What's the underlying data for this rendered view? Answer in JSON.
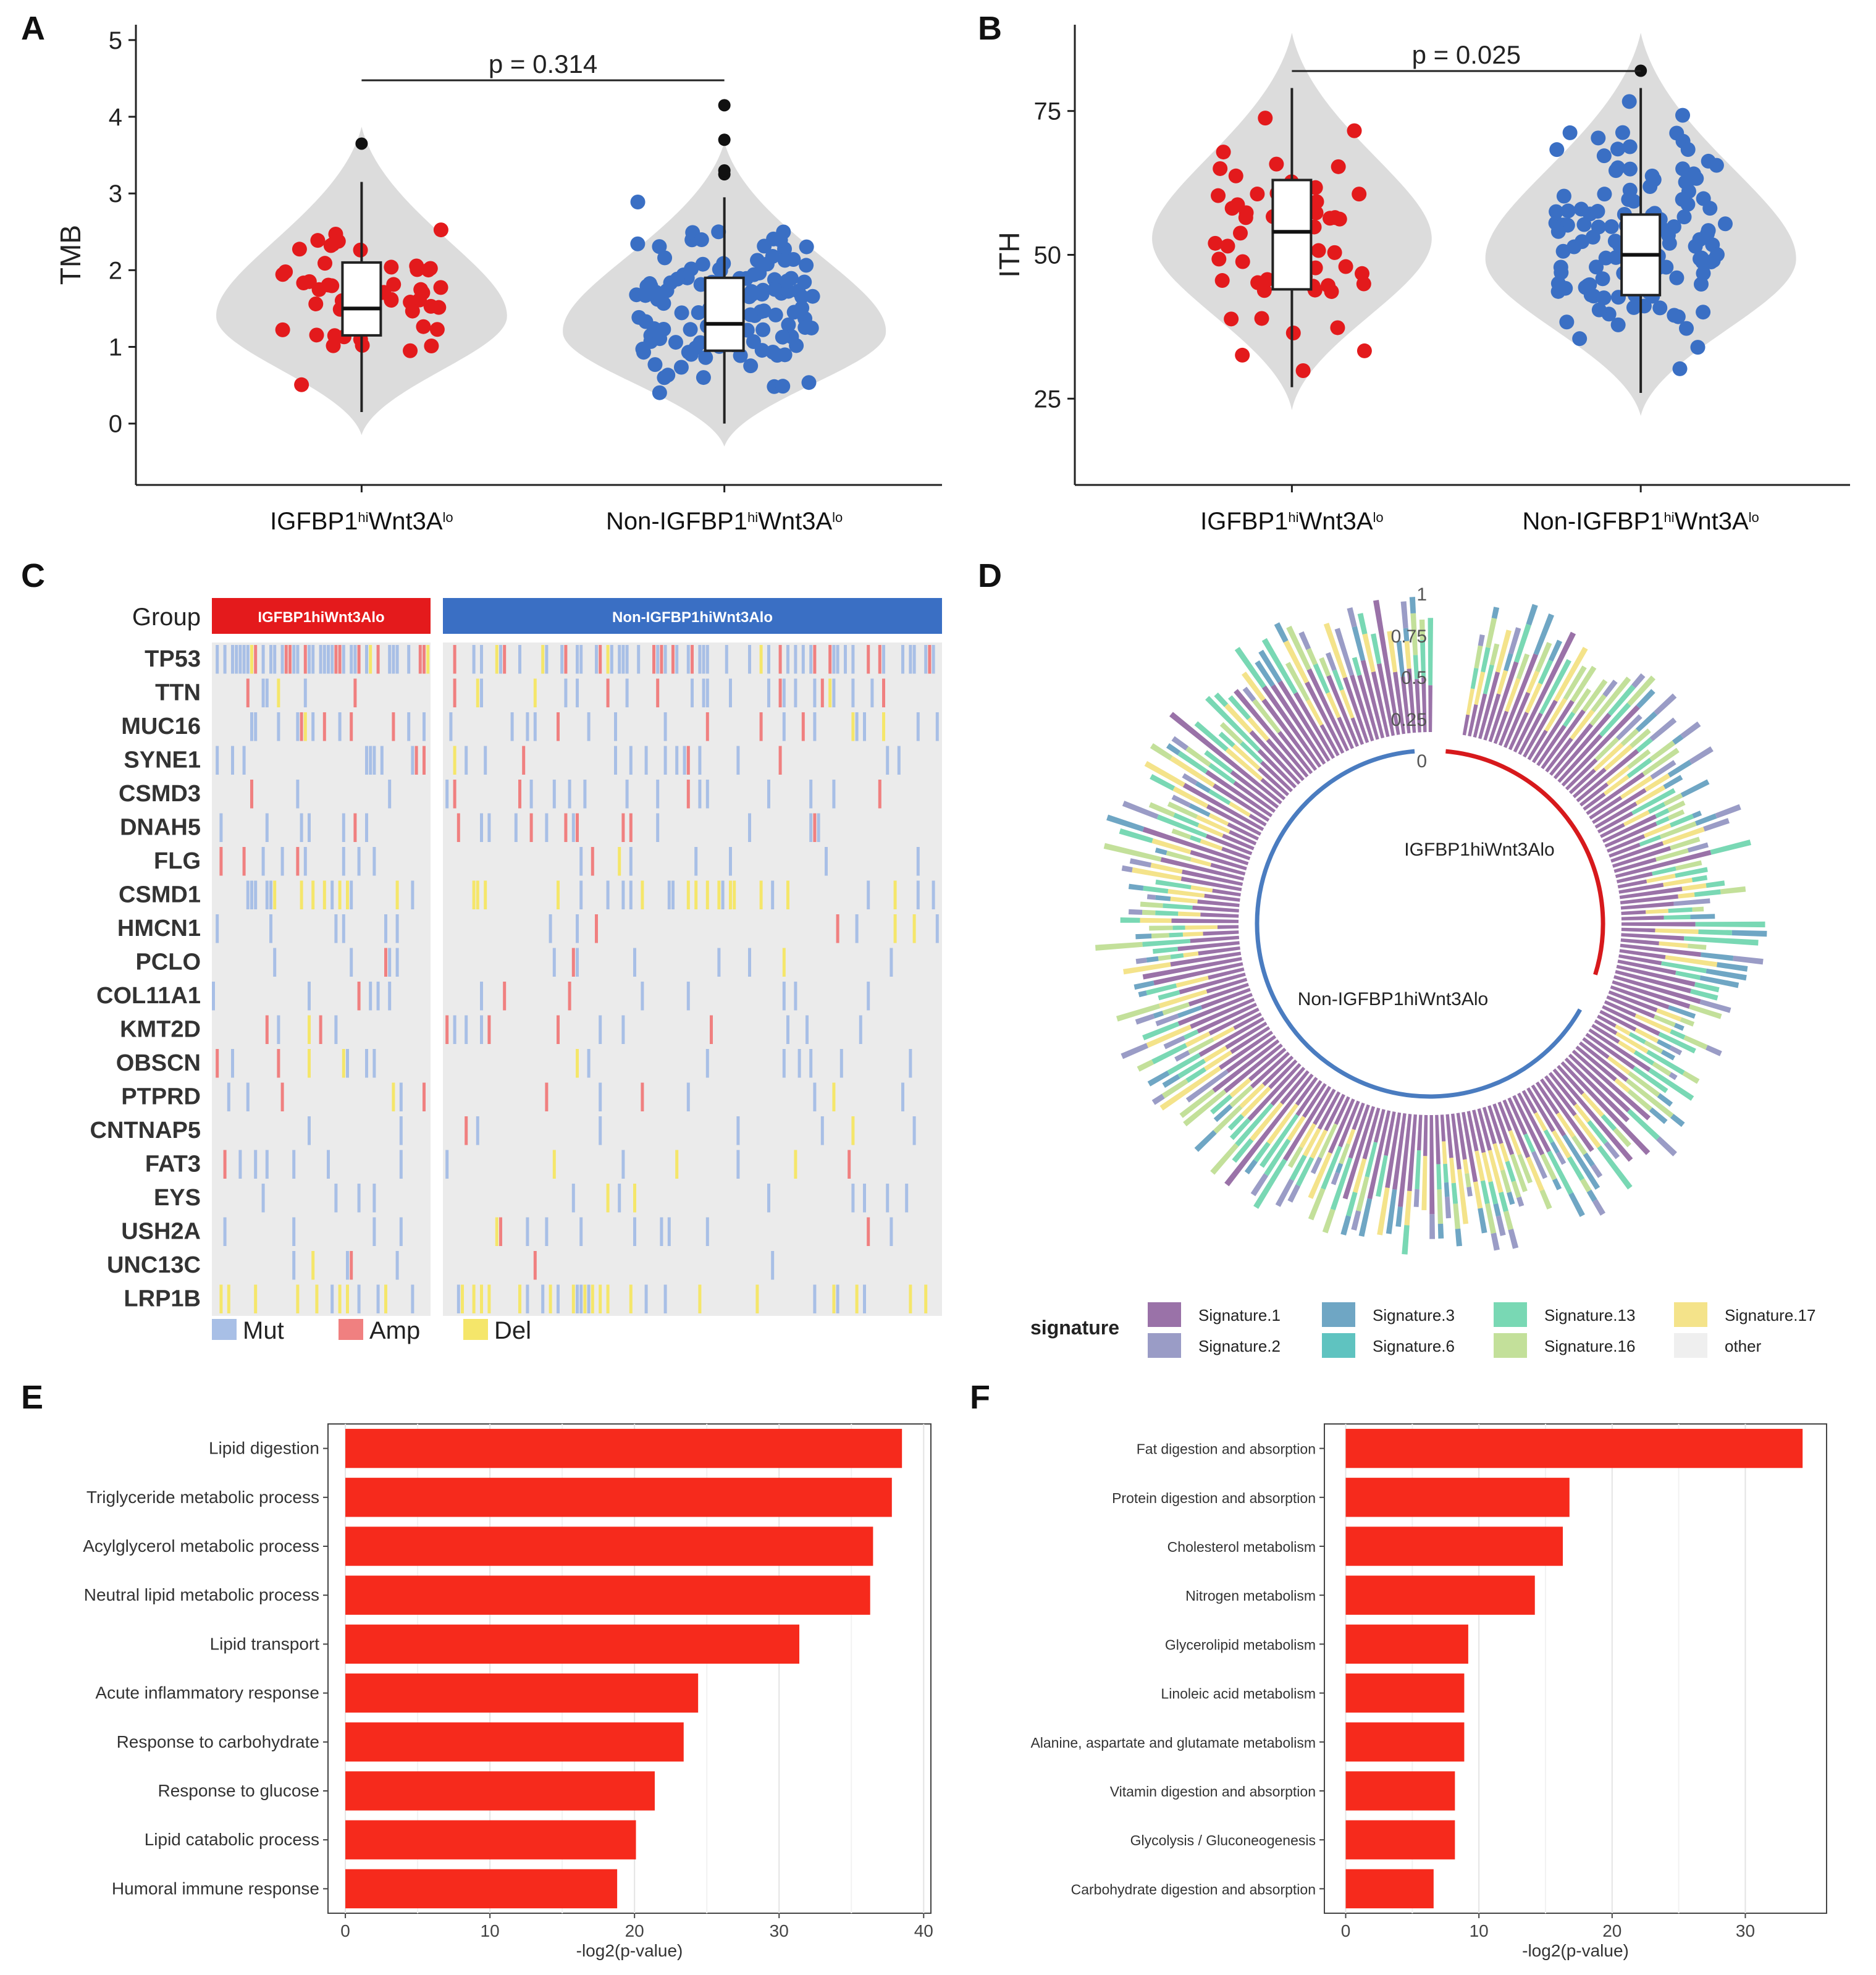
{
  "panels": {
    "a": "A",
    "b": "B",
    "c": "C",
    "d": "D",
    "e": "E",
    "f": "F"
  },
  "colors": {
    "red": "#e31a1c",
    "blue": "#3a6fc4",
    "violin": "#dcdcdc",
    "mut": "#a8bfe6",
    "amp": "#f08080",
    "del": "#f5e66a",
    "bar": "#f62a1c",
    "sig1": "#9a72a8",
    "sig2": "#9a9cc6",
    "sig3": "#6fa6c4",
    "sig6": "#5fc3c0",
    "sig13": "#79d8b4",
    "sig16": "#c3e09a",
    "sig17": "#f4e38a",
    "other": "#efefef"
  },
  "chart_data": [
    {
      "id": "A",
      "type": "violin",
      "ylabel": "TMB",
      "ylim": [
        -0.8,
        5.2
      ],
      "yticks": [
        0,
        1,
        2,
        3,
        4,
        5
      ],
      "categories": [
        "IGFBP1hiWnt3Alo",
        "Non-IGFBP1hiWnt3Alo"
      ],
      "category_labels": [
        {
          "base": "IGFBP1",
          "sup1": "hi",
          "mid": "Wnt3A",
          "sup2": "lo"
        },
        {
          "base": "Non-IGFBP1",
          "sup1": "hi",
          "mid": "Wnt3A",
          "sup2": "lo"
        }
      ],
      "boxes": [
        {
          "q1": 1.15,
          "median": 1.5,
          "q3": 2.1,
          "lower": 0.15,
          "upper": 3.15,
          "outliers": [
            3.65
          ]
        },
        {
          "q1": 0.95,
          "median": 1.3,
          "q3": 1.9,
          "lower": 0.0,
          "upper": 2.95,
          "outliers": [
            3.25,
            3.3,
            3.7,
            4.15
          ]
        }
      ],
      "pvalue": "p = 0.314"
    },
    {
      "id": "B",
      "type": "violin",
      "ylabel": "ITH",
      "ylim": [
        10,
        90
      ],
      "yticks": [
        25,
        50,
        75
      ],
      "categories": [
        "IGFBP1hiWnt3Alo",
        "Non-IGFBP1hiWnt3Alo"
      ],
      "category_labels": [
        {
          "base": "IGFBP1",
          "sup1": "hi",
          "mid": "Wnt3A",
          "sup2": "lo"
        },
        {
          "base": "Non-IGFBP1",
          "sup1": "hi",
          "mid": "Wnt3A",
          "sup2": "lo"
        }
      ],
      "boxes": [
        {
          "q1": 44,
          "median": 54,
          "q3": 63,
          "lower": 27,
          "upper": 79,
          "outliers": []
        },
        {
          "q1": 43,
          "median": 50,
          "q3": 57,
          "lower": 26,
          "upper": 79,
          "outliers": [
            82
          ]
        }
      ],
      "pvalue": "p = 0.025"
    },
    {
      "id": "C",
      "type": "heatmap",
      "group_label": "Group",
      "groups": [
        "IGFBP1hiWnt3Alo",
        "Non-IGFBP1hiWnt3Alo"
      ],
      "genes": [
        "TP53",
        "TTN",
        "MUC16",
        "SYNE1",
        "CSMD3",
        "DNAH5",
        "FLG",
        "CSMD1",
        "HMCN1",
        "PCLO",
        "COL11A1",
        "KMT2D",
        "OBSCN",
        "PTPRD",
        "CNTNAP5",
        "FAT3",
        "EYS",
        "USH2A",
        "UNC13C",
        "LRP1B"
      ],
      "legend": [
        "Mut",
        "Amp",
        "Del"
      ]
    },
    {
      "id": "D",
      "type": "circular_stacked_bar",
      "radial_ticks": [
        "1",
        "0.75",
        "0.5",
        "0.25",
        "0"
      ],
      "groups": [
        "IGFBP1hiWnt3Alo",
        "Non-IGFBP1hiWnt3Alo"
      ],
      "legend_title": "signature",
      "legend": [
        "Signature.1",
        "Signature.3",
        "Signature.13",
        "Signature.17",
        "Signature.2",
        "Signature.6",
        "Signature.16",
        "other"
      ]
    },
    {
      "id": "E",
      "type": "bar",
      "orientation": "horizontal",
      "categories": [
        "Lipid digestion",
        "Triglyceride metabolic process",
        "Acylglycerol metabolic process",
        "Neutral lipid metabolic process",
        "Lipid transport",
        "Acute inflammatory response",
        "Response to carbohydrate",
        "Response to glucose",
        "Lipid catabolic process",
        "Humoral immune response"
      ],
      "values": [
        38.5,
        37.8,
        36.5,
        36.3,
        31.4,
        24.4,
        23.4,
        21.4,
        20.1,
        18.8
      ],
      "xlabel": "-log2(p-value)",
      "xlim": [
        -1.2,
        40.5
      ],
      "xticks": [
        0,
        10,
        20,
        30,
        40
      ]
    },
    {
      "id": "F",
      "type": "bar",
      "orientation": "horizontal",
      "categories": [
        "Fat digestion and absorption",
        "Protein digestion and absorption",
        "Cholesterol metabolism",
        "Nitrogen metabolism",
        "Glycerolipid metabolism",
        "Linoleic acid metabolism",
        "Alanine, aspartate and glutamate metabolism",
        "Vitamin digestion and absorption",
        "Glycolysis / Gluconeogenesis",
        "Carbohydrate digestion and absorption"
      ],
      "values": [
        34.3,
        16.8,
        16.3,
        14.2,
        9.2,
        8.9,
        8.9,
        8.2,
        8.2,
        6.6
      ],
      "xlabel": "-log2(p-value)",
      "xlim": [
        -1.6,
        36.1
      ],
      "xticks": [
        0,
        10,
        20,
        30
      ]
    }
  ]
}
